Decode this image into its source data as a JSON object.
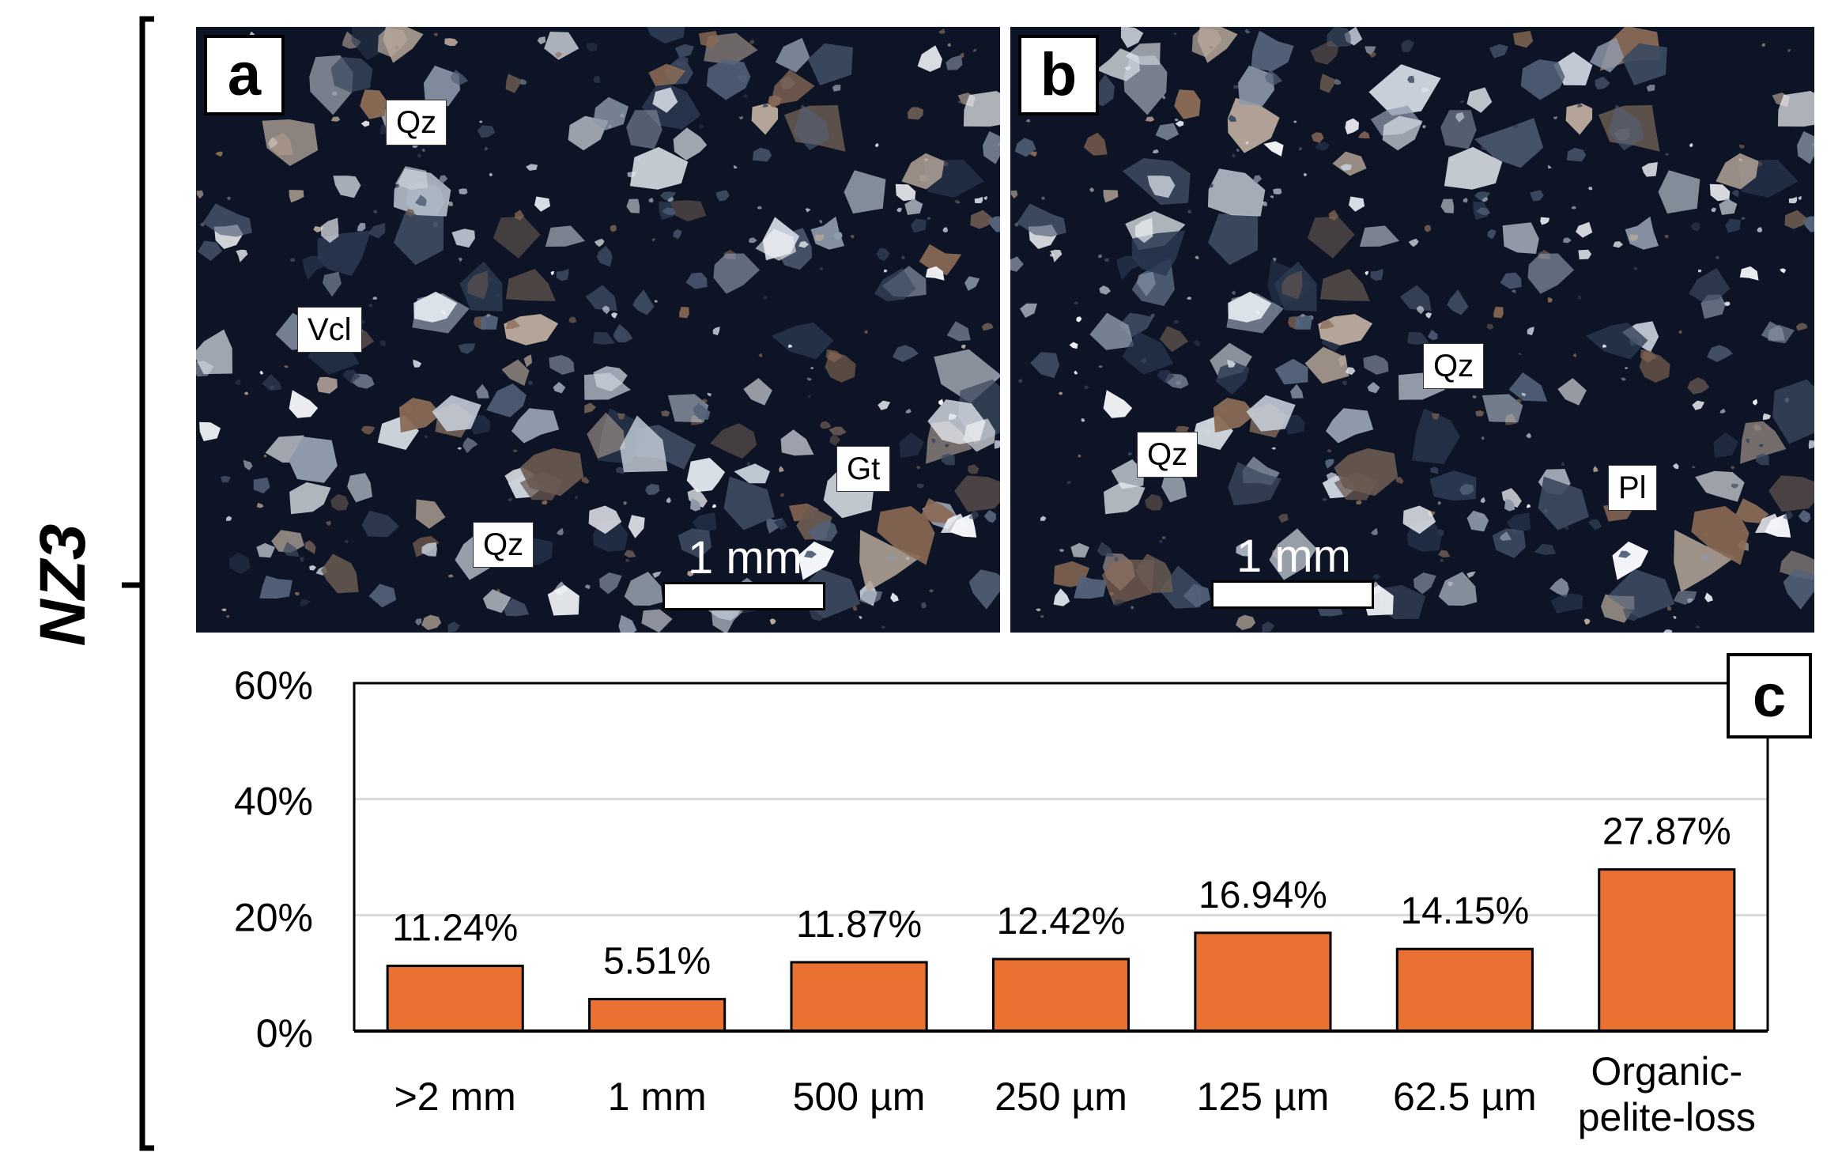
{
  "sample_label": "NZ3",
  "panels": [
    {
      "letter": "a",
      "scale_text": "1 mm",
      "minerals": [
        "Qz",
        "Vcl",
        "Gt",
        "Qz"
      ]
    },
    {
      "letter": "b",
      "scale_text": "1 mm",
      "minerals": [
        "Qz",
        "Qz",
        "Pl"
      ]
    }
  ],
  "chart_panel_letter": "c",
  "colors": {
    "bar_fill": "#e97132",
    "bar_stroke": "#000000",
    "gridline": "#d9d9d9",
    "micro_background": "#0c1426"
  },
  "chart_data": {
    "type": "bar",
    "title": "",
    "xlabel": "",
    "ylabel": "",
    "categories": [
      ">2 mm",
      "1 mm",
      "500 µm",
      "250 µm",
      "125 µm",
      "62.5 µm",
      "Organic-pelite-loss"
    ],
    "category_lines": [
      [
        ">2 mm"
      ],
      [
        "1 mm"
      ],
      [
        "500 µm"
      ],
      [
        "250 µm"
      ],
      [
        "125 µm"
      ],
      [
        "62.5 µm"
      ],
      [
        "Organic-",
        "pelite-loss"
      ]
    ],
    "values": [
      11.24,
      5.51,
      11.87,
      12.42,
      16.94,
      14.15,
      27.87
    ],
    "value_labels": [
      "11.24%",
      "5.51%",
      "11.87%",
      "12.42%",
      "16.94%",
      "14.15%",
      "27.87%"
    ],
    "ylim": [
      0,
      60
    ],
    "yticks": [
      0,
      20,
      40,
      60
    ],
    "ytick_labels": [
      "0%",
      "20%",
      "40%",
      "60%"
    ],
    "grid": true,
    "legend": "none"
  }
}
